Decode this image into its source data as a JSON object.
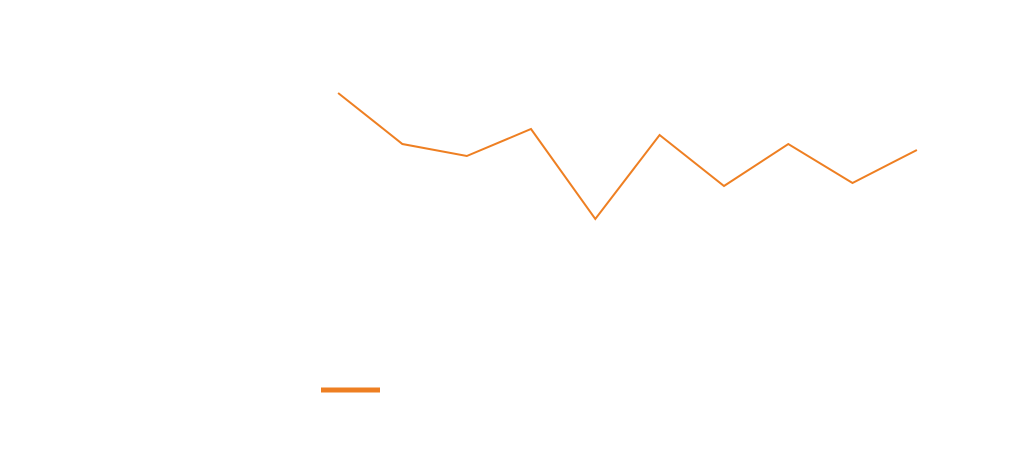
{
  "chart_data": {
    "type": "line",
    "categories": [
      null,
      null,
      null,
      null,
      null,
      null,
      null,
      null,
      null,
      null
    ],
    "series": [
      {
        "color": "#ee7f22",
        "values": [
          79,
          62,
          58,
          67,
          37,
          65,
          48,
          62,
          49,
          60
        ]
      }
    ],
    "ylim": [
      0,
      100
    ],
    "legend": "bottom-left"
  }
}
